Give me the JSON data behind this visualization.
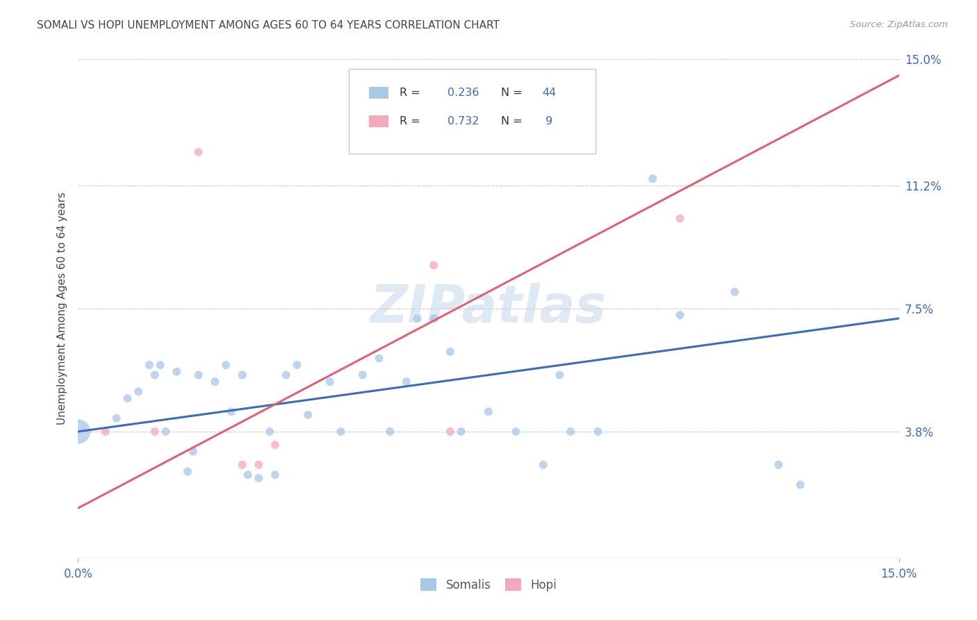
{
  "title": "SOMALI VS HOPI UNEMPLOYMENT AMONG AGES 60 TO 64 YEARS CORRELATION CHART",
  "source": "Source: ZipAtlas.com",
  "ylabel": "Unemployment Among Ages 60 to 64 years",
  "xlim": [
    0.0,
    0.15
  ],
  "ylim": [
    0.0,
    0.15
  ],
  "ytick_positions": [
    0.0,
    0.038,
    0.075,
    0.112,
    0.15
  ],
  "ytick_labels": [
    "",
    "3.8%",
    "7.5%",
    "11.2%",
    "15.0%"
  ],
  "xtick_positions": [
    0.0,
    0.15
  ],
  "xtick_labels": [
    "0.0%",
    "15.0%"
  ],
  "somali_color": "#a8c8e8",
  "hopi_color": "#f4a8bc",
  "somali_line_color": "#3a6bbf",
  "hopi_line_color": "#e06075",
  "somali_R": 0.236,
  "somali_N": 44,
  "hopi_R": 0.732,
  "hopi_N": 9,
  "somali_line_x0": 0.0,
  "somali_line_y0": 0.038,
  "somali_line_x1": 0.15,
  "somali_line_y1": 0.072,
  "hopi_line_x0": 0.0,
  "hopi_line_y0": 0.015,
  "hopi_line_x1": 0.15,
  "hopi_line_y1": 0.145,
  "somali_x": [
    0.0,
    0.007,
    0.009,
    0.011,
    0.013,
    0.014,
    0.015,
    0.016,
    0.018,
    0.02,
    0.021,
    0.022,
    0.025,
    0.027,
    0.028,
    0.03,
    0.031,
    0.033,
    0.035,
    0.036,
    0.038,
    0.04,
    0.042,
    0.046,
    0.048,
    0.052,
    0.055,
    0.057,
    0.06,
    0.062,
    0.065,
    0.068,
    0.07,
    0.075,
    0.08,
    0.085,
    0.088,
    0.09,
    0.095,
    0.105,
    0.11,
    0.12,
    0.128,
    0.132
  ],
  "somali_y": [
    0.038,
    0.042,
    0.048,
    0.05,
    0.058,
    0.055,
    0.058,
    0.038,
    0.056,
    0.026,
    0.032,
    0.055,
    0.053,
    0.058,
    0.044,
    0.055,
    0.025,
    0.024,
    0.038,
    0.025,
    0.055,
    0.058,
    0.043,
    0.053,
    0.038,
    0.055,
    0.06,
    0.038,
    0.053,
    0.072,
    0.072,
    0.062,
    0.038,
    0.044,
    0.038,
    0.028,
    0.055,
    0.038,
    0.038,
    0.114,
    0.073,
    0.08,
    0.028,
    0.022
  ],
  "somali_large_idx": 0,
  "somali_large_size": 650,
  "somali_size": 75,
  "hopi_x": [
    0.005,
    0.014,
    0.022,
    0.03,
    0.033,
    0.036,
    0.065,
    0.068,
    0.11
  ],
  "hopi_y": [
    0.038,
    0.038,
    0.122,
    0.028,
    0.028,
    0.034,
    0.088,
    0.038,
    0.102
  ],
  "hopi_size": 75
}
